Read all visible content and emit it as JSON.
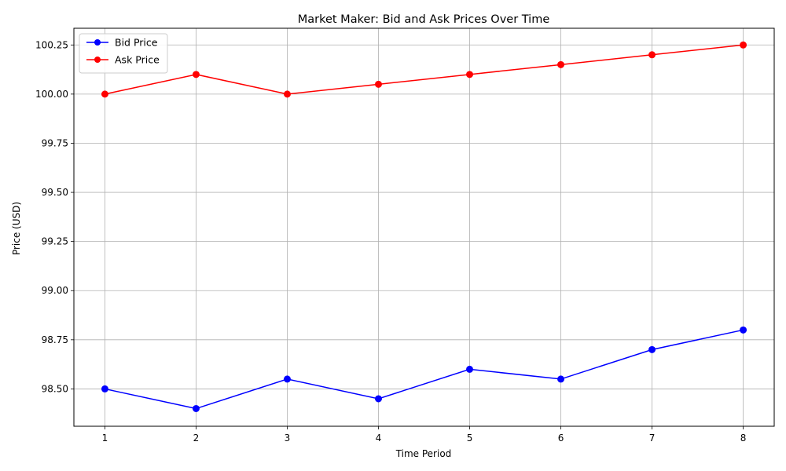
{
  "chart_data": {
    "type": "line",
    "title": "Market Maker: Bid and Ask Prices Over Time",
    "xlabel": "Time Period",
    "ylabel": "Price (USD)",
    "x": [
      1,
      2,
      3,
      4,
      5,
      6,
      7,
      8
    ],
    "xlim": [
      0.66,
      8.34
    ],
    "ylim": [
      98.31,
      100.335
    ],
    "yticks": [
      98.5,
      98.75,
      99.0,
      99.25,
      99.5,
      99.75,
      100.0,
      100.25
    ],
    "grid": true,
    "legend_position": "top-left",
    "series": [
      {
        "name": "Bid Price",
        "color": "#0000ff",
        "marker": "circle",
        "values": [
          98.5,
          98.4,
          98.55,
          98.45,
          98.6,
          98.55,
          98.7,
          98.8
        ]
      },
      {
        "name": "Ask Price",
        "color": "#ff0000",
        "marker": "circle",
        "values": [
          100.0,
          100.1,
          100.0,
          100.05,
          100.1,
          100.15,
          100.2,
          100.25
        ]
      }
    ]
  }
}
